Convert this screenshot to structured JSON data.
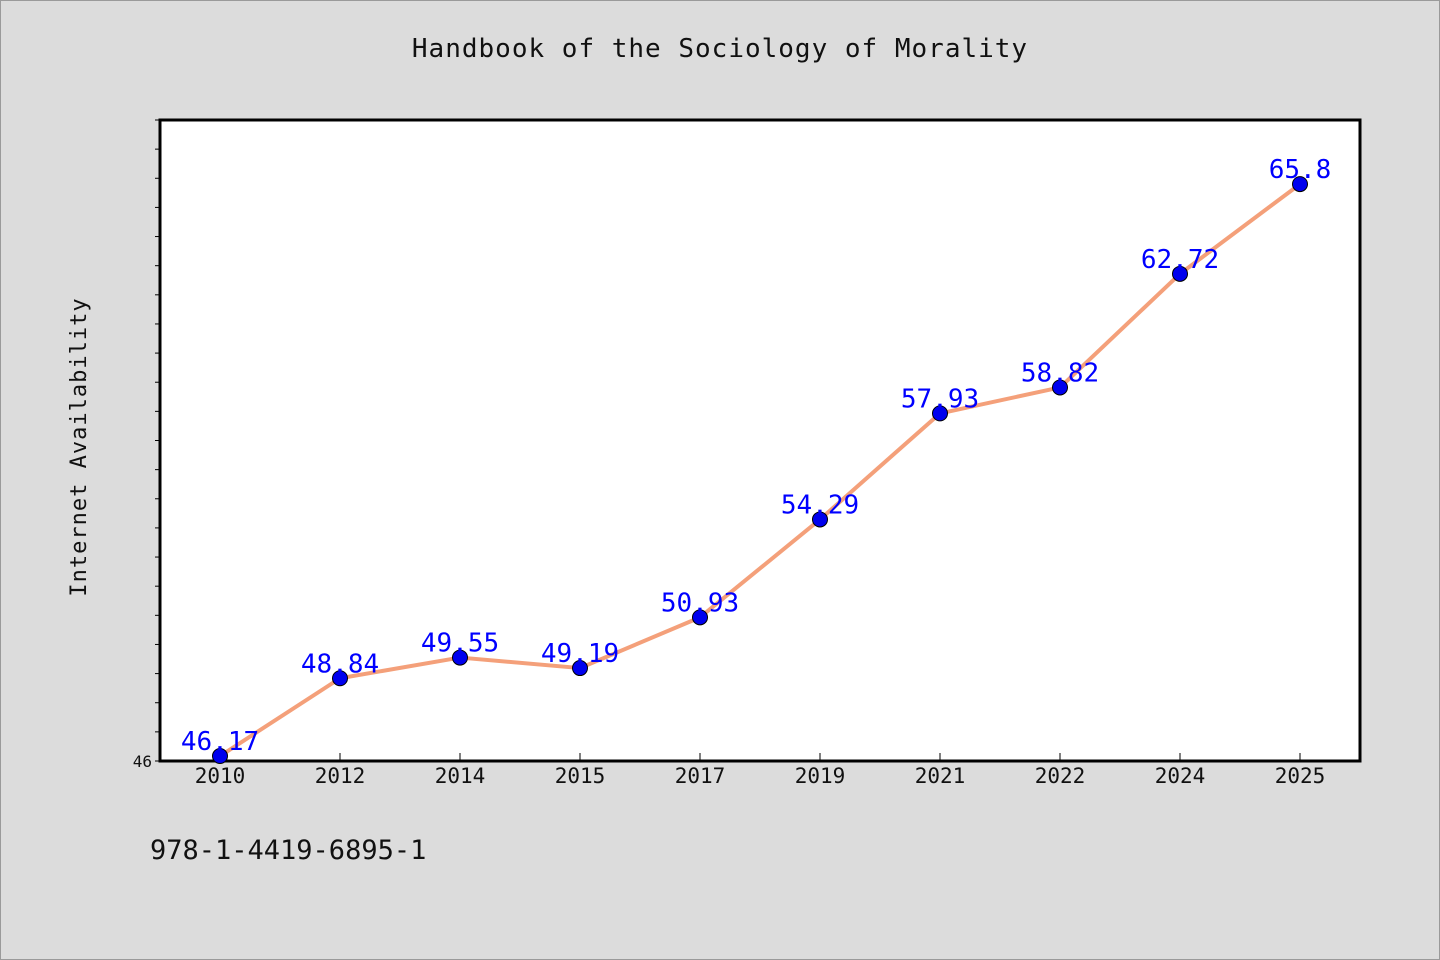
{
  "chart_data": {
    "type": "line",
    "title": "Handbook of the Sociology of Morality",
    "xlabel": "",
    "ylabel": "Internet Availability",
    "categories": [
      "2010",
      "2012",
      "2014",
      "2015",
      "2017",
      "2019",
      "2021",
      "2022",
      "2024",
      "2025"
    ],
    "series": [
      {
        "values": [
          46.17,
          48.84,
          49.55,
          49.19,
          50.93,
          54.29,
          57.93,
          58.82,
          62.72,
          65.8
        ],
        "labels": [
          "46.17",
          "48.84",
          "49.55",
          "49.19",
          "50.93",
          "54.29",
          "57.93",
          "58.82",
          "62.72",
          "65.8"
        ]
      }
    ],
    "ylim": [
      46,
      68
    ],
    "yticks_labeled": [
      "46"
    ],
    "grid": false,
    "colors": {
      "line": "#f4a07a",
      "marker": "#0000ee",
      "data_label": "#0000ff",
      "plot_bg": "#ffffff",
      "page_bg": "#dcdcdc"
    }
  },
  "footer": {
    "isbn": "978-1-4419-6895-1"
  }
}
